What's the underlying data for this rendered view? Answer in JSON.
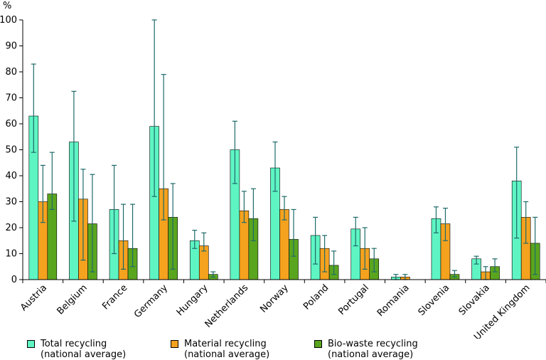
{
  "chart_data": {
    "type": "bar",
    "unit_label": "%",
    "ylim": [
      0,
      100
    ],
    "yticks": [
      0,
      10,
      20,
      30,
      40,
      50,
      60,
      70,
      80,
      90,
      100
    ],
    "categories": [
      "Austria",
      "Belgium",
      "France",
      "Germany",
      "Hungary",
      "Netherlands",
      "Norway",
      "Poland",
      "Portugal",
      "Romania",
      "Slovenia",
      "Slovakia",
      "United Kingdom"
    ],
    "series": [
      {
        "name_line1": "Total recycling",
        "name_line2": "(national average)",
        "color": "#5ef5c3",
        "values": [
          63,
          53,
          27,
          59,
          15,
          50,
          43,
          17,
          19.5,
          1,
          23.5,
          8,
          38
        ],
        "err_low": [
          49,
          22.5,
          10,
          32,
          12,
          37,
          34,
          6,
          13,
          0,
          18,
          6,
          16
        ],
        "err_high": [
          83,
          72.5,
          44,
          100,
          19,
          61,
          53,
          24,
          24,
          2,
          28,
          9,
          51
        ]
      },
      {
        "name_line1": "Material recycling",
        "name_line2": "(national average)",
        "color": "#f5a21f",
        "values": [
          30,
          31,
          15,
          35,
          13,
          26.5,
          27,
          12,
          12,
          1,
          21.5,
          3,
          24
        ],
        "err_low": [
          22,
          7.5,
          4,
          23,
          11,
          22,
          23,
          3,
          4,
          0,
          15,
          0,
          14
        ],
        "err_high": [
          44,
          42.5,
          29,
          79,
          18,
          34,
          32,
          17,
          20,
          2,
          27.5,
          5,
          30
        ]
      },
      {
        "name_line1": "Bio-waste recycling",
        "name_line2": "(national average)",
        "color": "#5aa51e",
        "values": [
          33,
          21.5,
          12,
          24,
          2,
          23.5,
          15.5,
          5.5,
          8,
          null,
          2,
          5,
          14
        ],
        "err_low": [
          27,
          3,
          5,
          4,
          1,
          15,
          9,
          2,
          3,
          null,
          1,
          3,
          2
        ],
        "err_high": [
          49,
          40.5,
          29,
          37,
          3,
          35,
          27,
          11,
          12,
          null,
          3.5,
          8,
          24
        ]
      }
    ],
    "grid": false,
    "legend_position": "bottom"
  }
}
